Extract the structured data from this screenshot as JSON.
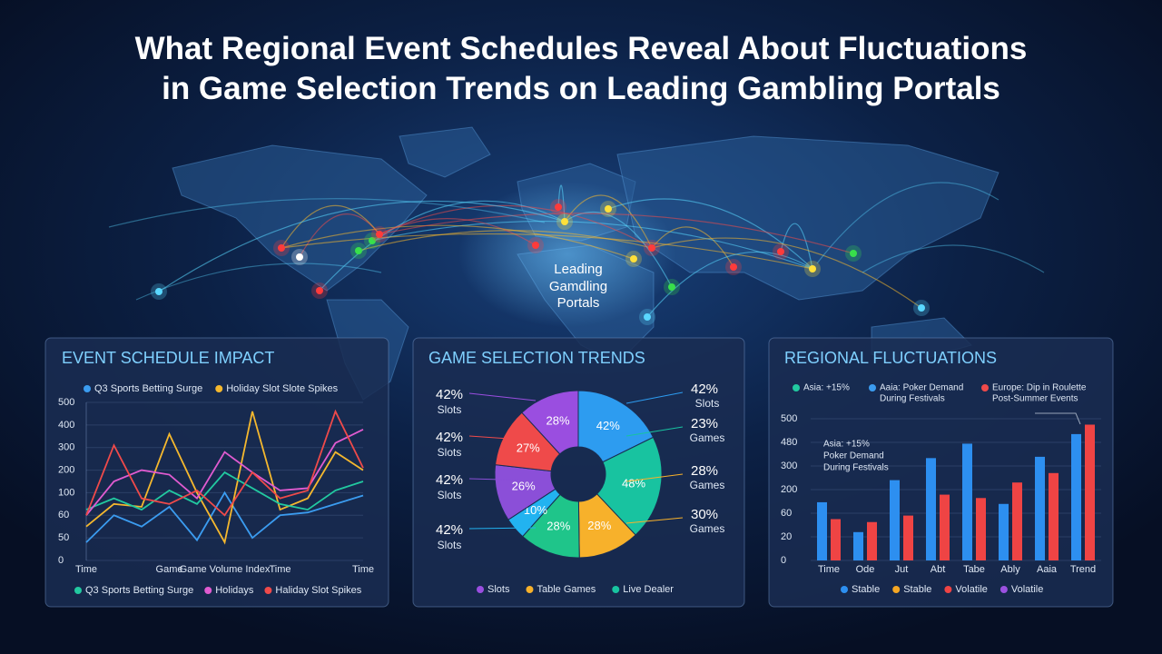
{
  "title": "What Regional Event Schedules Reveal About Fluctuations in Game Selection Trends on Leading Gambling Portals",
  "map_label": [
    "Leading",
    "Gamdling",
    "Portals"
  ],
  "chart_data": [
    {
      "type": "line",
      "title": "EVENT SCHEDULE IMPACT",
      "categories": [
        "Time",
        null,
        null,
        "Game",
        null,
        "Game Volume Index",
        null,
        "Time",
        null,
        null,
        "Time"
      ],
      "ylim": [
        0,
        500
      ],
      "yticks": [
        0,
        50,
        60,
        100,
        200,
        300,
        400,
        500
      ],
      "y_scale": "tick-spaced",
      "series": [
        {
          "name": "Q3 Sports Betting Surge",
          "color": "#3b9cf0",
          "legend": "top",
          "values": [
            40,
            60,
            55,
            75,
            45,
            100,
            50,
            60,
            65,
            80,
            95
          ]
        },
        {
          "name": "Holiday Slot Slote Spikes",
          "color": "#f5b82e",
          "legend": "top",
          "values": [
            55,
            80,
            75,
            360,
            100,
            40,
            460,
            70,
            90,
            280,
            200
          ]
        },
        {
          "name": "Q3 Sports Betting Surge",
          "color": "#22c9a0",
          "legend": "bottom",
          "values": [
            70,
            90,
            70,
            110,
            80,
            190,
            120,
            80,
            70,
            110,
            150
          ]
        },
        {
          "name": "Holidays",
          "color": "#e05bd0",
          "legend": "bottom",
          "values": [
            60,
            150,
            200,
            180,
            90,
            280,
            190,
            110,
            120,
            320,
            380
          ]
        },
        {
          "name": "Haliday Slot Spikes",
          "color": "#ef4a4a",
          "legend": "bottom",
          "values": [
            60,
            310,
            90,
            80,
            110,
            60,
            190,
            90,
            110,
            460,
            210
          ]
        }
      ]
    },
    {
      "type": "pie",
      "title": "GAME SELECTION TRENDS",
      "donut": true,
      "values": [
        42,
        48,
        28,
        28,
        10,
        26,
        27,
        28
      ],
      "value_labels": [
        "42%",
        "48%",
        "28%",
        "28%",
        "10%",
        "26%",
        "27%",
        "28%"
      ],
      "colors": [
        "#2d9cf0",
        "#18c3a0",
        "#f7b12b",
        "#1fc58a",
        "#22b3f0",
        "#8b4fd8",
        "#ef4a4a",
        "#9a4ee0"
      ],
      "left_callouts": [
        {
          "value": "42%",
          "text": "Slots"
        },
        {
          "value": "42%",
          "text": "Slots"
        },
        {
          "value": "42%",
          "text": "Slots"
        },
        {
          "value": "42%",
          "text": "Slots"
        }
      ],
      "right_callouts": [
        {
          "value": "42%",
          "text": "Slots"
        },
        {
          "value": "23%",
          "text": "Games"
        },
        {
          "value": "28%",
          "text": "Games"
        },
        {
          "value": "30%",
          "text": "Games"
        }
      ],
      "legend": [
        {
          "name": "Slots",
          "color": "#9a4ee0"
        },
        {
          "name": "Table Games",
          "color": "#f7b12b"
        },
        {
          "name": "Live Dealer",
          "color": "#18c3a0"
        }
      ]
    },
    {
      "type": "bar",
      "title": "REGIONAL FLUCTUATIONS",
      "categories": [
        "Time",
        "Ode",
        "Jut",
        "Abt",
        "Tabe",
        "Ably",
        "Aaia",
        "Trend"
      ],
      "ylim": [
        0,
        500
      ],
      "yticks": [
        0,
        20,
        60,
        200,
        300,
        480,
        500
      ],
      "y_scale": "tick-spaced",
      "series": [
        {
          "name": "Stable",
          "color": "#2d8ff0",
          "values": [
            125,
            28,
            240,
            360,
            470,
            115,
            370,
            487
          ]
        },
        {
          "name": "Volatile",
          "color": "#ef4444",
          "values": [
            50,
            45,
            56,
            170,
            150,
            230,
            270,
            495
          ]
        }
      ],
      "extra_legend": [
        {
          "name": "Stable",
          "color": "#f5a623"
        },
        {
          "name": "Volatile",
          "color": "#9b51e0"
        }
      ],
      "top_legend": [
        {
          "color": "#22c9a0",
          "lines": [
            "Asia: +15%"
          ]
        },
        {
          "color": "#3b9cf0",
          "lines": [
            "Aaia: Poker Demand",
            "During Festivals"
          ]
        },
        {
          "color": "#ef4a4a",
          "lines": [
            "Europe: Dip in Roulette",
            "Post-Summer Events"
          ]
        }
      ],
      "annotation": [
        "Asia: +15%",
        "Poker Demand",
        "During Festivals"
      ]
    }
  ]
}
